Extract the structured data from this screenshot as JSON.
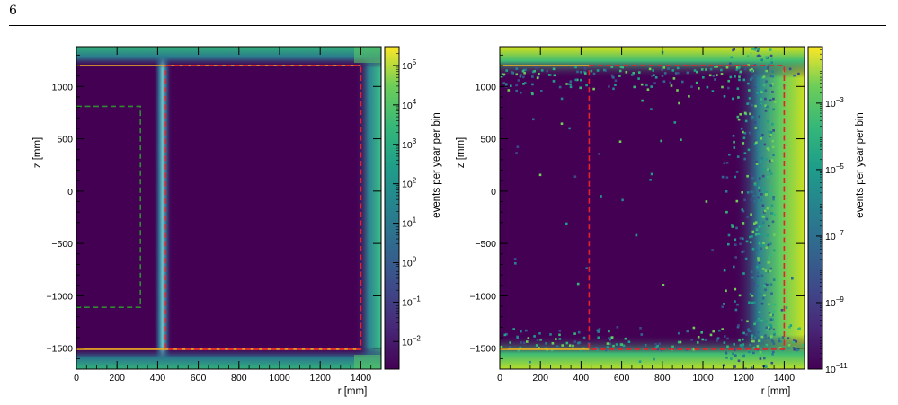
{
  "page": {
    "number": "6"
  },
  "chart_data": [
    {
      "type": "heatmap",
      "xlabel": "r [mm]",
      "ylabel": "z [mm]",
      "zlabel": "events per year per bin",
      "xlim": [
        0,
        1500
      ],
      "ylim": [
        -1700,
        1380
      ],
      "x_ticks": [
        "0",
        "200",
        "400",
        "600",
        "800",
        "1000",
        "1200",
        "1400"
      ],
      "x_tick_values": [
        0,
        200,
        400,
        600,
        800,
        1000,
        1200,
        1400
      ],
      "y_ticks": [
        "1000",
        "500",
        "0",
        "−500",
        "−1000",
        "−1500"
      ],
      "y_tick_values": [
        1000,
        500,
        0,
        -500,
        -1000,
        -1500
      ],
      "z_scale": "log",
      "z_range": [
        0.002,
        300000
      ],
      "z_ticks": [
        {
          "base": "10",
          "exp": "5",
          "value": 100000
        },
        {
          "base": "10",
          "exp": "4",
          "value": 10000
        },
        {
          "base": "10",
          "exp": "3",
          "value": 1000
        },
        {
          "base": "10",
          "exp": "2",
          "value": 100
        },
        {
          "base": "10",
          "exp": "1",
          "value": 10
        },
        {
          "base": "10",
          "exp": "0",
          "value": 1
        },
        {
          "base": "10",
          "exp": "−1",
          "value": 0.1
        },
        {
          "base": "10",
          "exp": "−2",
          "value": 0.01
        }
      ],
      "colormap": "viridis",
      "overlays": [
        {
          "style": "solid",
          "color": "#f2b020",
          "points": [
            [
              0,
              1200
            ],
            [
              1400,
              1200
            ]
          ]
        },
        {
          "style": "solid",
          "color": "#f2b020",
          "points": [
            [
              0,
              -1510
            ],
            [
              1400,
              -1510
            ]
          ]
        },
        {
          "style": "dashed",
          "color": "#e8202a",
          "points": [
            [
              440,
              1200
            ],
            [
              1400,
              1200
            ],
            [
              1400,
              -1510
            ],
            [
              440,
              -1510
            ],
            [
              440,
              1200
            ]
          ]
        },
        {
          "style": "dashed",
          "color": "#2e8b2e",
          "points": [
            [
              0,
              810
            ],
            [
              315,
              810
            ],
            [
              315,
              -1110
            ],
            [
              0,
              -1110
            ]
          ]
        }
      ]
    },
    {
      "type": "heatmap",
      "xlabel": "r [mm]",
      "ylabel": "z [mm]",
      "zlabel": "events per year per bin",
      "xlim": [
        0,
        1500
      ],
      "ylim": [
        -1700,
        1380
      ],
      "x_ticks": [
        "0",
        "200",
        "400",
        "600",
        "800",
        "1000",
        "1200",
        "1400"
      ],
      "x_tick_values": [
        0,
        200,
        400,
        600,
        800,
        1000,
        1200,
        1400
      ],
      "y_ticks": [
        "1000",
        "500",
        "0",
        "−500",
        "−1000",
        "−1500"
      ],
      "y_tick_values": [
        1000,
        500,
        0,
        -500,
        -1000,
        -1500
      ],
      "z_scale": "log",
      "z_range": [
        1e-11,
        0.05
      ],
      "z_ticks": [
        {
          "base": "10",
          "exp": "−3",
          "value": 0.001
        },
        {
          "base": "10",
          "exp": "−5",
          "value": 1e-05
        },
        {
          "base": "10",
          "exp": "−7",
          "value": 1e-07
        },
        {
          "base": "10",
          "exp": "−9",
          "value": 1e-09
        },
        {
          "base": "10",
          "exp": "−11",
          "value": 1e-11
        }
      ],
      "colormap": "viridis",
      "overlays": [
        {
          "style": "solid",
          "color": "#f2b020",
          "points": [
            [
              0,
              1200
            ],
            [
              440,
              1200
            ]
          ]
        },
        {
          "style": "solid",
          "color": "#f2b020",
          "points": [
            [
              0,
              -1510
            ],
            [
              440,
              -1510
            ]
          ]
        },
        {
          "style": "dashed",
          "color": "#e8202a",
          "points": [
            [
              440,
              1200
            ],
            [
              1400,
              1200
            ],
            [
              1400,
              -1510
            ],
            [
              440,
              -1510
            ],
            [
              440,
              1200
            ]
          ]
        }
      ]
    }
  ]
}
